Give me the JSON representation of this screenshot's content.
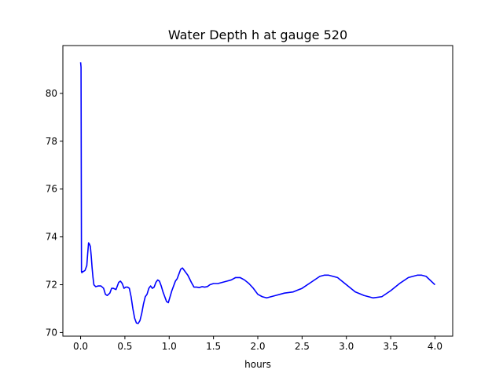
{
  "chart_data": {
    "type": "line",
    "title": "Water Depth h at gauge 520",
    "xlabel": "hours",
    "ylabel": "",
    "xlim": [
      -0.2,
      4.2
    ],
    "ylim": [
      69.85,
      82.0
    ],
    "xticks": [
      0.0,
      0.5,
      1.0,
      1.5,
      2.0,
      2.5,
      3.0,
      3.5,
      4.0
    ],
    "xtick_labels": [
      "0.0",
      "0.5",
      "1.0",
      "1.5",
      "2.0",
      "2.5",
      "3.0",
      "3.5",
      "4.0"
    ],
    "yticks": [
      70,
      72,
      74,
      76,
      78,
      80
    ],
    "ytick_labels": [
      "70",
      "72",
      "74",
      "76",
      "78",
      "80"
    ],
    "grid": false,
    "series": [
      {
        "color": "#0000ff",
        "x": [
          0.0,
          0.005,
          0.01,
          0.015,
          0.02,
          0.03,
          0.05,
          0.07,
          0.08,
          0.09,
          0.1,
          0.11,
          0.12,
          0.13,
          0.14,
          0.15,
          0.17,
          0.2,
          0.23,
          0.26,
          0.28,
          0.3,
          0.33,
          0.35,
          0.37,
          0.4,
          0.43,
          0.45,
          0.47,
          0.49,
          0.51,
          0.53,
          0.55,
          0.57,
          0.59,
          0.61,
          0.63,
          0.65,
          0.67,
          0.69,
          0.71,
          0.73,
          0.75,
          0.77,
          0.79,
          0.81,
          0.83,
          0.85,
          0.87,
          0.89,
          0.91,
          0.93,
          0.95,
          0.97,
          0.99,
          1.01,
          1.03,
          1.05,
          1.07,
          1.09,
          1.11,
          1.13,
          1.15,
          1.17,
          1.19,
          1.21,
          1.23,
          1.25,
          1.28,
          1.31,
          1.34,
          1.37,
          1.4,
          1.43,
          1.46,
          1.5,
          1.55,
          1.6,
          1.65,
          1.7,
          1.75,
          1.8,
          1.85,
          1.9,
          1.95,
          2.0,
          2.05,
          2.1,
          2.2,
          2.3,
          2.4,
          2.5,
          2.6,
          2.7,
          2.75,
          2.8,
          2.9,
          3.0,
          3.1,
          3.2,
          3.3,
          3.4,
          3.5,
          3.6,
          3.7,
          3.8,
          3.85,
          3.9,
          4.0
        ],
        "y": [
          81.3,
          81.1,
          72.55,
          72.5,
          72.55,
          72.55,
          72.6,
          72.8,
          73.3,
          73.75,
          73.7,
          73.6,
          73.2,
          72.7,
          72.3,
          72.0,
          71.92,
          71.95,
          71.95,
          71.85,
          71.6,
          71.55,
          71.65,
          71.85,
          71.85,
          71.8,
          72.1,
          72.15,
          72.05,
          71.85,
          71.9,
          71.9,
          71.85,
          71.5,
          71.0,
          70.6,
          70.4,
          70.38,
          70.5,
          70.8,
          71.2,
          71.5,
          71.6,
          71.85,
          71.95,
          71.85,
          71.9,
          72.1,
          72.2,
          72.15,
          71.95,
          71.7,
          71.5,
          71.3,
          71.25,
          71.5,
          71.75,
          71.95,
          72.15,
          72.25,
          72.45,
          72.65,
          72.7,
          72.6,
          72.5,
          72.4,
          72.25,
          72.1,
          71.9,
          71.9,
          71.88,
          71.92,
          71.9,
          71.92,
          72.0,
          72.05,
          72.05,
          72.1,
          72.15,
          72.2,
          72.3,
          72.3,
          72.2,
          72.05,
          71.85,
          71.6,
          71.5,
          71.45,
          71.55,
          71.65,
          71.7,
          71.85,
          72.1,
          72.35,
          72.4,
          72.4,
          72.3,
          72.0,
          71.7,
          71.55,
          71.45,
          71.5,
          71.75,
          72.05,
          72.3,
          72.4,
          72.4,
          72.35,
          72.0
        ]
      }
    ]
  }
}
